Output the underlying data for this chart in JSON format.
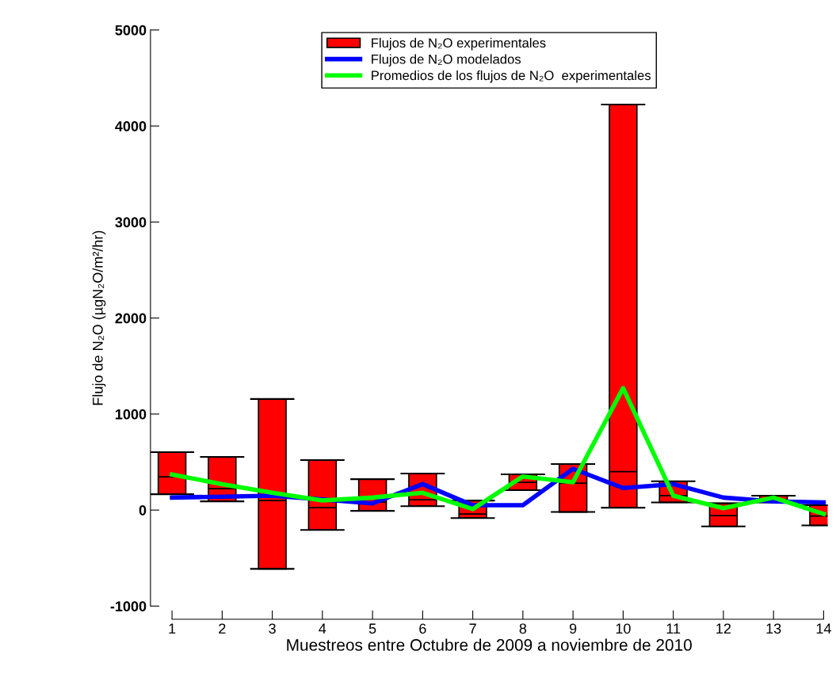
{
  "chart_data": {
    "type": "box",
    "xlabel": "Muestreos entre Octubre de 2009 a noviembre de 2010",
    "ylabel": "Flujo de N₂O (µgN₂O/m²/hr)",
    "categories": [
      "1",
      "2",
      "3",
      "4",
      "5",
      "6",
      "7",
      "8",
      "9",
      "10",
      "11",
      "12",
      "13",
      "14"
    ],
    "ylim": [
      -1000,
      5000
    ],
    "yticks": [
      -1000,
      0,
      1000,
      2000,
      3000,
      4000,
      5000
    ],
    "grid": false,
    "legend": "top",
    "series": [
      {
        "name": "Flujos de N₂O experimentales",
        "color": "#ff0000",
        "boxes": [
          {
            "low": 165,
            "q1": 165,
            "median": 347,
            "q3": 603,
            "high": 603
          },
          {
            "low": 91,
            "q1": 91,
            "median": 223,
            "q3": 554,
            "high": 554
          },
          {
            "low": -612,
            "q1": -612,
            "median": 99,
            "q3": 1157,
            "high": 1157
          },
          {
            "low": -207,
            "q1": -207,
            "median": 25,
            "q3": 521,
            "high": 521
          },
          {
            "low": -8,
            "q1": -8,
            "median": 83,
            "q3": 322,
            "high": 322
          },
          {
            "low": 41,
            "q1": 41,
            "median": 107,
            "q3": 380,
            "high": 380
          },
          {
            "low": -83,
            "q1": -83,
            "median": -41,
            "q3": 99,
            "high": 99
          },
          {
            "low": 207,
            "q1": 207,
            "median": 289,
            "q3": 372,
            "high": 372
          },
          {
            "low": -20,
            "q1": -20,
            "median": 281,
            "q3": 480,
            "high": 480
          },
          {
            "low": 25,
            "q1": 25,
            "median": 400,
            "q3": 4223,
            "high": 4223
          },
          {
            "low": 80,
            "q1": 80,
            "median": 150,
            "q3": 300,
            "high": 300
          },
          {
            "low": -170,
            "q1": -170,
            "median": -58,
            "q3": 70,
            "high": 70
          },
          {
            "low": 80,
            "q1": 80,
            "median": 110,
            "q3": 150,
            "high": 150
          },
          {
            "low": -160,
            "q1": -160,
            "median": -62,
            "q3": 50,
            "high": 50
          }
        ]
      },
      {
        "name": "Flujos de N₂O modelados",
        "type": "line",
        "color": "#0000ff",
        "values": [
          130,
          140,
          150,
          110,
          70,
          270,
          50,
          50,
          430,
          230,
          270,
          130,
          90,
          80
        ]
      },
      {
        "name": "Promedios de los flujos de N₂O  experimentales",
        "type": "line",
        "color": "#00ff00",
        "values": [
          370,
          270,
          180,
          100,
          130,
          180,
          10,
          350,
          290,
          1270,
          150,
          20,
          130,
          -40
        ]
      }
    ]
  }
}
